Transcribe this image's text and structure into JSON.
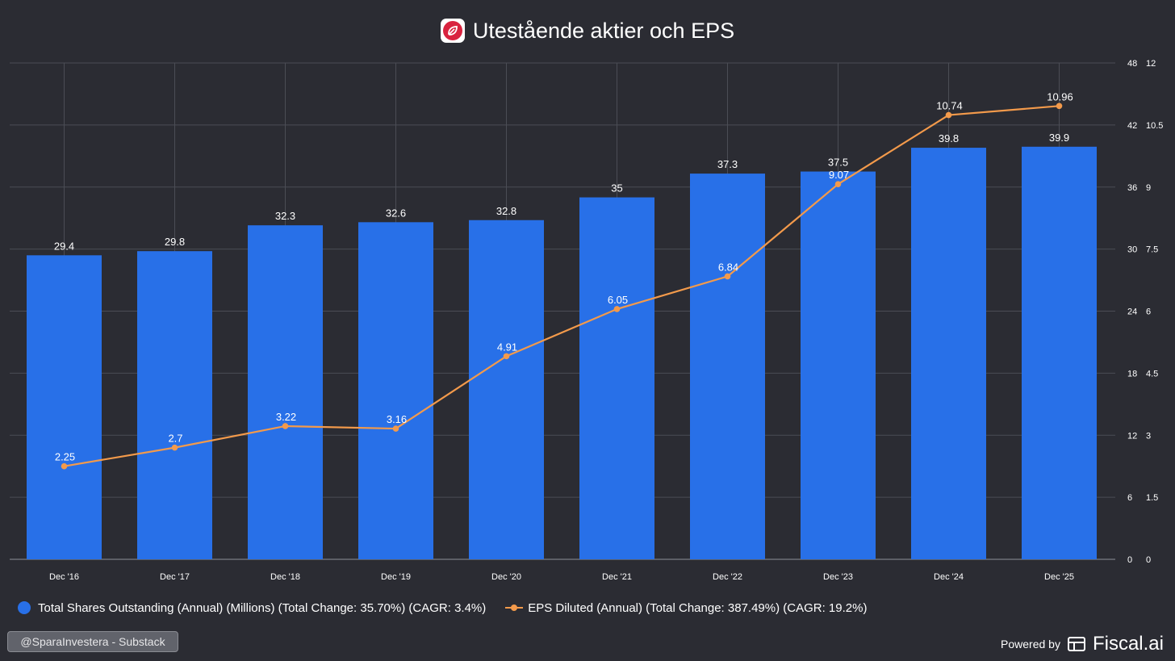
{
  "header": {
    "title": "Utestående aktier och EPS",
    "logo_icon": "ica-leaf-logo-icon"
  },
  "chart_data": {
    "type": "bar",
    "title": "Utestående aktier och EPS",
    "categories": [
      "Dec '16",
      "Dec '17",
      "Dec '18",
      "Dec '19",
      "Dec '20",
      "Dec '21",
      "Dec '22",
      "Dec '23",
      "Dec '24",
      "Dec '25"
    ],
    "series": [
      {
        "name": "Total Shares Outstanding (Annual) (Millions)",
        "type": "bar",
        "axis": "left",
        "color": "#2870e8",
        "values": [
          29.4,
          29.8,
          32.3,
          32.6,
          32.8,
          35,
          37.3,
          37.5,
          39.8,
          39.9
        ],
        "labels": [
          "29.4",
          "29.8",
          "32.3",
          "32.6",
          "32.8",
          "35",
          "37.3",
          "37.5",
          "39.8",
          "39.9"
        ]
      },
      {
        "name": "EPS Diluted (Annual)",
        "type": "line",
        "axis": "right",
        "color": "#f39a4b",
        "values": [
          2.25,
          2.7,
          3.22,
          3.16,
          4.91,
          6.05,
          6.84,
          9.07,
          10.74,
          10.96
        ],
        "labels": [
          "2.25",
          "2.7",
          "3.22",
          "3.16",
          "4.91",
          "6.05",
          "6.84",
          "9.07",
          "10.74",
          "10.96"
        ]
      }
    ],
    "y_left": {
      "min": 0,
      "max": 48,
      "ticks": [
        "0",
        "6",
        "12",
        "18",
        "24",
        "30",
        "36",
        "42",
        "48"
      ]
    },
    "y_right": {
      "min": 0,
      "max": 12,
      "ticks": [
        "0",
        "1.5",
        "3",
        "4.5",
        "6",
        "7.5",
        "9",
        "10.5",
        "12"
      ]
    },
    "grid": true,
    "legend_position": "bottom-left"
  },
  "legend": {
    "bar_label": "Total Shares Outstanding (Annual) (Millions) (Total Change: 35.70%) (CAGR: 3.4%)",
    "line_label": "EPS Diluted (Annual) (Total Change: 387.49%) (CAGR: 19.2%)"
  },
  "footer": {
    "watermark": "@SparaInvestera - Substack",
    "powered_by": "Powered by",
    "brand": "Fiscal.ai",
    "brand_icon": "fiscal-ai-logo-icon"
  }
}
